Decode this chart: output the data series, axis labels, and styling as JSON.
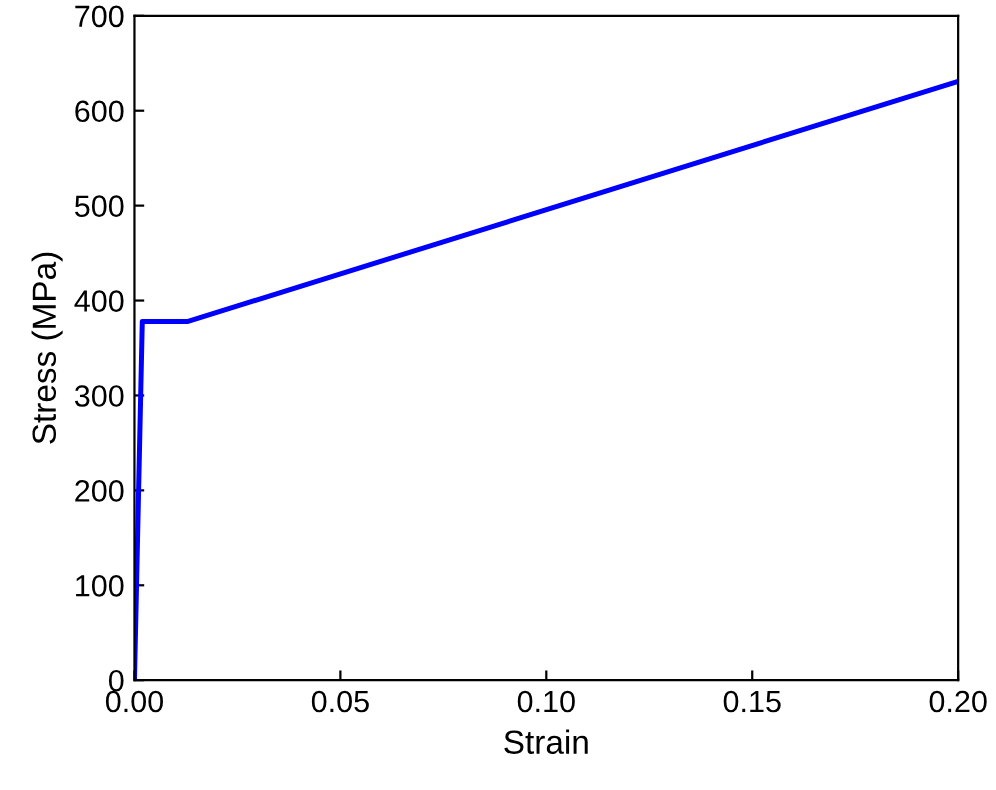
{
  "chart_data": {
    "type": "line",
    "xlabel": "Strain",
    "ylabel": "Stress (MPa)",
    "series": [
      {
        "color": "#0000ff",
        "x": [
          0,
          0.0019,
          0.013,
          0.2
        ],
        "values": [
          0,
          378,
          378,
          631
        ]
      }
    ],
    "xlim": [
      0,
      0.2
    ],
    "ylim": [
      0,
      700
    ],
    "xticks": [
      {
        "value": 0,
        "label": "0.00"
      },
      0.05,
      {
        "value": 0.1,
        "label": "0.10"
      },
      0.15,
      {
        "value": 0.2,
        "label": "0.20"
      }
    ],
    "yticks": [
      0,
      100,
      200,
      300,
      400,
      500,
      600,
      700
    ],
    "grid": false,
    "legend": false,
    "marker": "none",
    "line_style": "solid"
  }
}
